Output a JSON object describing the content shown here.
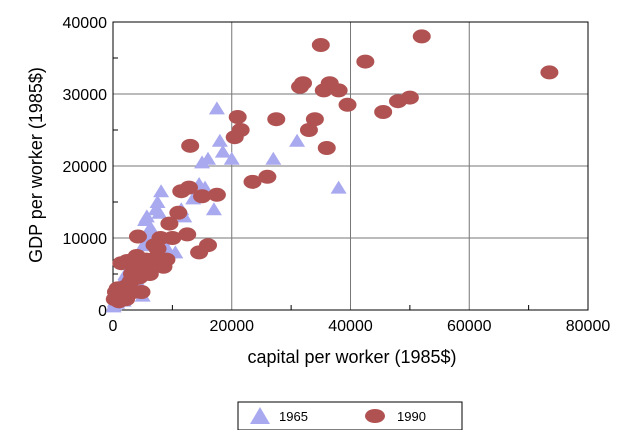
{
  "chart_data": {
    "type": "scatter",
    "xlabel": "capital per worker (1985$)",
    "ylabel": "GDP per worker (1985$)",
    "xlim": [
      0,
      80000
    ],
    "ylim": [
      0,
      40000
    ],
    "x_ticks": [
      0,
      20000,
      40000,
      60000,
      80000
    ],
    "y_ticks": [
      0,
      10000,
      20000,
      30000,
      40000
    ],
    "grid": true,
    "legend_position": "bottom",
    "series": [
      {
        "name": "1965",
        "marker": "triangle",
        "color": "#a9a9ef",
        "points": [
          [
            100,
            500
          ],
          [
            200,
            800
          ],
          [
            300,
            1200
          ],
          [
            500,
            1500
          ],
          [
            700,
            1000
          ],
          [
            900,
            2000
          ],
          [
            1100,
            2500
          ],
          [
            1300,
            3000
          ],
          [
            1500,
            3500
          ],
          [
            1700,
            4000
          ],
          [
            1900,
            4500
          ],
          [
            2100,
            5000
          ],
          [
            2300,
            3500
          ],
          [
            2500,
            2800
          ],
          [
            2700,
            4200
          ],
          [
            2900,
            5500
          ],
          [
            3100,
            6000
          ],
          [
            3300,
            2500
          ],
          [
            3600,
            3000
          ],
          [
            3900,
            6500
          ],
          [
            4200,
            7000
          ],
          [
            4500,
            3500
          ],
          [
            4800,
            7500
          ],
          [
            5100,
            9000
          ],
          [
            5400,
            12500
          ],
          [
            5700,
            13000
          ],
          [
            6000,
            10000
          ],
          [
            6300,
            11500
          ],
          [
            6600,
            11000
          ],
          [
            6900,
            9500
          ],
          [
            7200,
            14000
          ],
          [
            7500,
            15000
          ],
          [
            7800,
            13500
          ],
          [
            8100,
            16500
          ],
          [
            8400,
            7500
          ],
          [
            8800,
            9000
          ],
          [
            9500,
            8000
          ],
          [
            10500,
            8000
          ],
          [
            11500,
            14000
          ],
          [
            12000,
            13000
          ],
          [
            13500,
            15500
          ],
          [
            14500,
            17500
          ],
          [
            15000,
            20500
          ],
          [
            15500,
            17000
          ],
          [
            16000,
            21000
          ],
          [
            17000,
            14000
          ],
          [
            17500,
            28000
          ],
          [
            18000,
            23500
          ],
          [
            18500,
            22000
          ],
          [
            20000,
            21000
          ],
          [
            27000,
            21000
          ],
          [
            31000,
            23500
          ],
          [
            38000,
            17000
          ],
          [
            5000,
            2000
          ],
          [
            1800,
            1300
          ]
        ]
      },
      {
        "name": "1990",
        "marker": "circle",
        "color": "#b05252",
        "points": [
          [
            300,
            1500
          ],
          [
            500,
            2500
          ],
          [
            600,
            1800
          ],
          [
            800,
            3000
          ],
          [
            1000,
            1200
          ],
          [
            1200,
            2200
          ],
          [
            1400,
            6500
          ],
          [
            1600,
            3000
          ],
          [
            1800,
            2000
          ],
          [
            2000,
            2800
          ],
          [
            2200,
            1500
          ],
          [
            2400,
            6800
          ],
          [
            2600,
            3500
          ],
          [
            2800,
            2500
          ],
          [
            3000,
            4000
          ],
          [
            3200,
            5000
          ],
          [
            3400,
            2500
          ],
          [
            3600,
            6000
          ],
          [
            3800,
            5000
          ],
          [
            4000,
            7500
          ],
          [
            4200,
            10200
          ],
          [
            4400,
            4500
          ],
          [
            4600,
            6000
          ],
          [
            4800,
            2500
          ],
          [
            5000,
            5500
          ],
          [
            5300,
            5000
          ],
          [
            5600,
            7000
          ],
          [
            5900,
            6500
          ],
          [
            6200,
            5000
          ],
          [
            6600,
            7000
          ],
          [
            7000,
            9000
          ],
          [
            7500,
            8500
          ],
          [
            8000,
            10000
          ],
          [
            8500,
            6000
          ],
          [
            9000,
            7000
          ],
          [
            9500,
            12000
          ],
          [
            10000,
            10000
          ],
          [
            11000,
            13500
          ],
          [
            11500,
            16500
          ],
          [
            12500,
            10500
          ],
          [
            12800,
            17000
          ],
          [
            13000,
            22800
          ],
          [
            14500,
            8000
          ],
          [
            15000,
            15800
          ],
          [
            16000,
            9000
          ],
          [
            17500,
            16000
          ],
          [
            20500,
            24000
          ],
          [
            21000,
            26800
          ],
          [
            21500,
            25000
          ],
          [
            23500,
            17800
          ],
          [
            26000,
            18500
          ],
          [
            27500,
            26500
          ],
          [
            31500,
            31000
          ],
          [
            32000,
            31500
          ],
          [
            33000,
            25000
          ],
          [
            34000,
            26500
          ],
          [
            35000,
            36800
          ],
          [
            35500,
            30500
          ],
          [
            36000,
            22500
          ],
          [
            36500,
            31500
          ],
          [
            38000,
            30500
          ],
          [
            39500,
            28500
          ],
          [
            42500,
            34500
          ],
          [
            45500,
            27500
          ],
          [
            48000,
            29000
          ],
          [
            50000,
            29500
          ],
          [
            52000,
            38000
          ],
          [
            73500,
            33000
          ],
          [
            2000,
            3200
          ],
          [
            1000,
            2600
          ]
        ]
      }
    ]
  }
}
